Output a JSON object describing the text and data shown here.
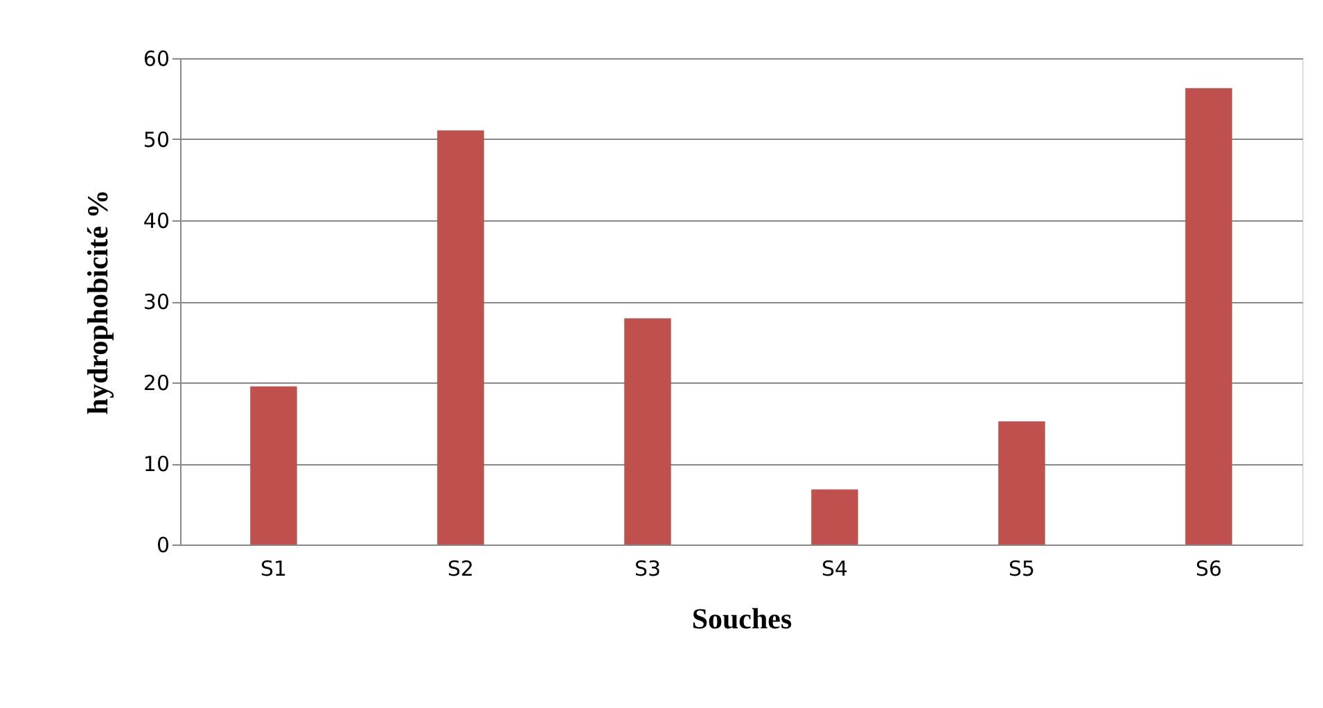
{
  "chart_data": {
    "type": "bar",
    "xlabel": "Souches",
    "ylabel": "hydrophobicité %",
    "categories": [
      "S1",
      "S2",
      "S3",
      "S4",
      "S5",
      "S6"
    ],
    "values": [
      19.5,
      51.1,
      27.9,
      6.8,
      15.2,
      56.3
    ],
    "color": "#c0504d",
    "ylim": [
      0,
      60
    ],
    "yticks": [
      0,
      10,
      20,
      30,
      40,
      50,
      60
    ],
    "grid": "y"
  }
}
